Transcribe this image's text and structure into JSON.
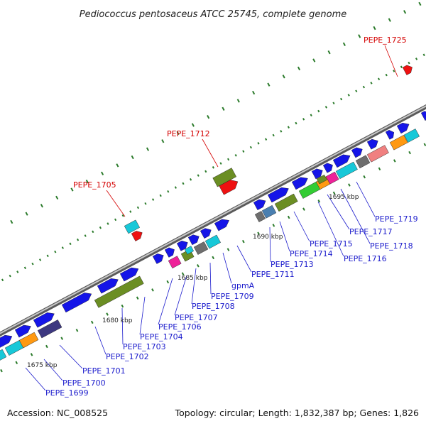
{
  "title": "Pediococcus pentosaceus ATCC 25745, complete genome",
  "footer": {
    "accession": "Accession: NC_008525",
    "summary": "Topology: circular; Length: 1,832,387 bp; Genes: 1,826"
  },
  "colors": {
    "backbone": "#8c8c8c",
    "forward_label": "#1a1acc",
    "reverse_label": "#d40000",
    "tick": "#2a7a2a",
    "blue": "#1515e8",
    "olive": "#6b8e23",
    "cyan": "#17c8d8",
    "red": "#ee1111",
    "magenta": "#ee2299",
    "gray": "#6e6e6e",
    "orange": "#ff9911",
    "green": "#33cc33",
    "steel": "#4a7fb0",
    "navy": "#3d3880",
    "salmon": "#f08080"
  },
  "kbp_marks": [
    "1675 kbp",
    "1680 kbp",
    "1685 kbp",
    "1690 kbp",
    "1695 kbp"
  ],
  "forward_labels": [
    "PEPE_1699",
    "PEPE_1700",
    "PEPE_1701",
    "PEPE_1702",
    "PEPE_1703",
    "PEPE_1704",
    "PEPE_1706",
    "PEPE_1707",
    "PEPE_1708",
    "PEPE_1709",
    "gpmA",
    "PEPE_1711",
    "PEPE_1713",
    "PEPE_1714",
    "PEPE_1715",
    "PEPE_1716",
    "PEPE_1717",
    "PEPE_1718",
    "PEPE_1719"
  ],
  "reverse_labels": [
    "PEPE_1705",
    "PEPE_1712",
    "PEPE_1725"
  ]
}
